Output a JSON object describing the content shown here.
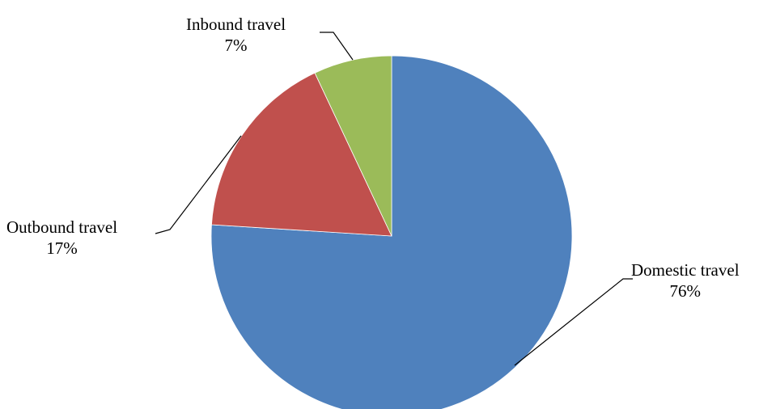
{
  "chart_data": {
    "type": "pie",
    "title": "",
    "slices": [
      {
        "name": "Domestic travel",
        "value": 76,
        "value_label": "76%",
        "color": "#4f81bd"
      },
      {
        "name": "Outbound travel",
        "value": 17,
        "value_label": "17%",
        "color": "#c0504d"
      },
      {
        "name": "Inbound travel",
        "value": 7,
        "value_label": "7%",
        "color": "#9bbb59"
      }
    ],
    "legend": "none",
    "data_labels": "outside-with-leader-lines"
  }
}
